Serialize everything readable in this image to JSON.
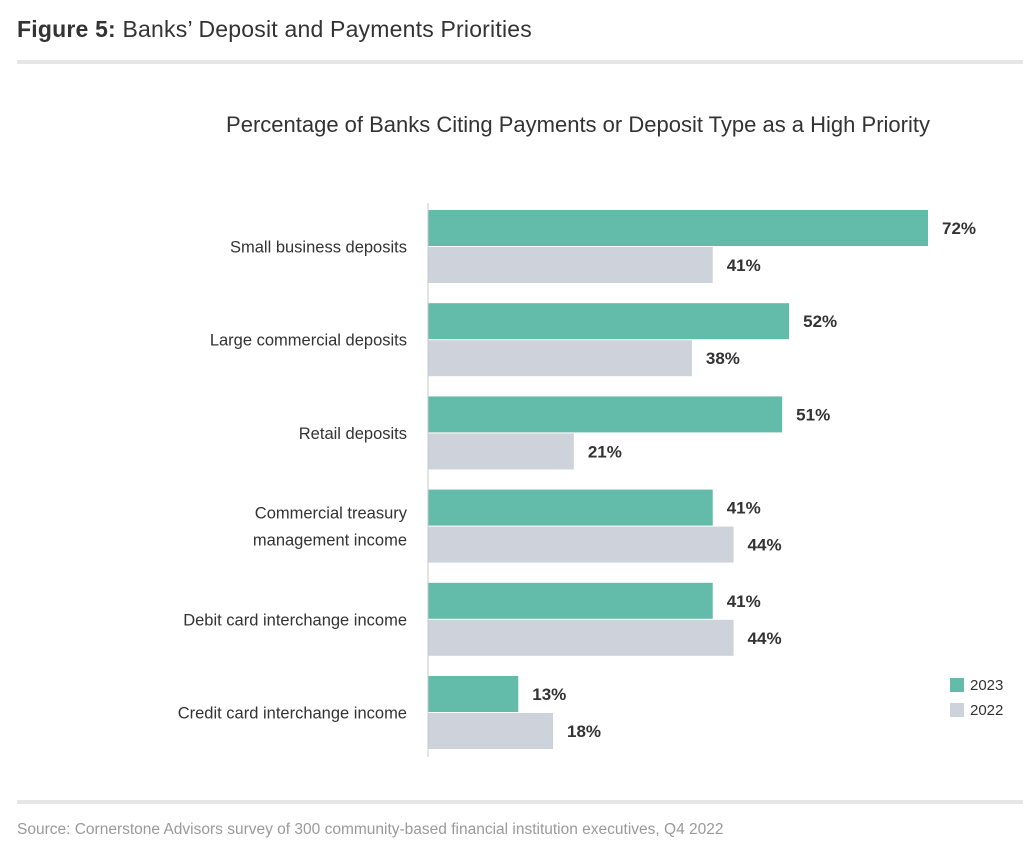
{
  "figure": {
    "label": "Figure 5:",
    "title": "Banks’ Deposit and Payments Priorities"
  },
  "source": "Source: Cornerstone Advisors survey of 300 community-based financial institution executives, Q4 2022",
  "chart_data": {
    "type": "bar",
    "orientation": "horizontal",
    "title": "Percentage of Banks Citing Payments or Deposit Type as a High Priority",
    "categories": [
      [
        "Small business deposits"
      ],
      [
        "Large commercial deposits"
      ],
      [
        "Retail deposits"
      ],
      [
        "Commercial treasury",
        "management income"
      ],
      [
        "Debit card interchange income"
      ],
      [
        "Credit card interchange income"
      ]
    ],
    "series": [
      {
        "name": "2023",
        "color": "#63bcaa",
        "values": [
          72,
          52,
          51,
          41,
          41,
          13
        ]
      },
      {
        "name": "2022",
        "color": "#cdd2db",
        "values": [
          41,
          38,
          21,
          44,
          44,
          18
        ]
      }
    ],
    "value_suffix": "%",
    "xlim": [
      0,
      72
    ],
    "grid": false,
    "legend_position": "bottom-right"
  }
}
